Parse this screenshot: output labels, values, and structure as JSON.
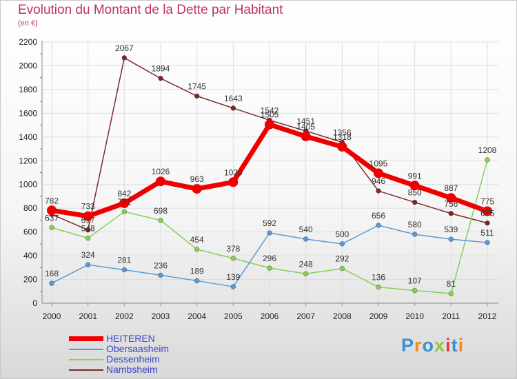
{
  "header": {
    "title": "Evolution du Montant de la Dette par Habitant",
    "subtitle": "(en €)"
  },
  "brand": {
    "text": "Proxiti"
  },
  "chart_data": {
    "type": "line",
    "title": "Evolution du Montant de la Dette par Habitant",
    "subtitle": "(en €)",
    "x": [
      "2000",
      "2001",
      "2002",
      "2003",
      "2004",
      "2005",
      "2006",
      "2007",
      "2008",
      "2009",
      "2010",
      "2011",
      "2012"
    ],
    "yticks": [
      "0",
      "200",
      "400",
      "600",
      "800",
      "1000",
      "1200",
      "1400",
      "1600",
      "1800",
      "2000",
      "2200"
    ],
    "ylim": [
      0,
      2200
    ],
    "grid": true,
    "legend_position": "bottom-left",
    "series": [
      {
        "name": "Nambsheim",
        "color": "#7a2a2a",
        "values": [
          748,
          617,
          2067,
          1894,
          1745,
          1643,
          1542,
          1451,
          1356,
          946,
          850,
          756,
          675
        ],
        "labels": [
          "",
          "617",
          "2067",
          "1894",
          "1745",
          "1643",
          "1542",
          "1451",
          "1356",
          "946",
          "850",
          "756",
          "675"
        ]
      },
      {
        "name": "Dessenheim",
        "color": "#86d056",
        "values": [
          637,
          548,
          771,
          698,
          454,
          378,
          296,
          248,
          292,
          136,
          107,
          81,
          1208
        ],
        "labels": [
          "637",
          "548",
          "771",
          "698",
          "454",
          "378",
          "296",
          "248",
          "292",
          "136",
          "107",
          "81",
          "1208"
        ]
      },
      {
        "name": "Obersaasheim",
        "color": "#5b9bd5",
        "values": [
          168,
          324,
          281,
          236,
          189,
          139,
          592,
          540,
          500,
          656,
          580,
          539,
          511
        ],
        "labels": [
          "168",
          "324",
          "281",
          "236",
          "189",
          "139",
          "592",
          "540",
          "500",
          "656",
          "580",
          "539",
          "511"
        ]
      },
      {
        "name": "HEITEREN",
        "color": "#ee0000",
        "values": [
          782,
          733,
          842,
          1026,
          963,
          1020,
          1505,
          1405,
          1318,
          1095,
          991,
          887,
          775
        ],
        "labels": [
          "782",
          "733",
          "842",
          "1026",
          "963",
          "1020",
          "1505",
          "1405",
          "1318",
          "1095",
          "991",
          "887",
          "775"
        ]
      }
    ],
    "legend": [
      "HEITEREN",
      "Obersaasheim",
      "Dessenheim",
      "Nambsheim"
    ]
  }
}
